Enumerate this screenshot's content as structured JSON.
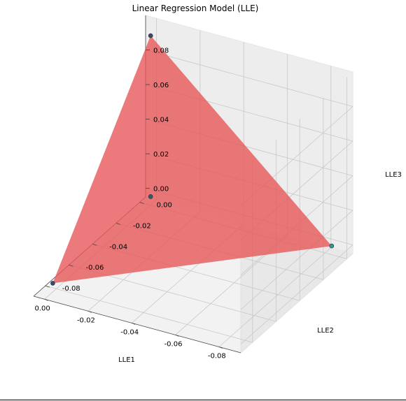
{
  "chart_data": {
    "type": "scatter",
    "projection": "3d",
    "title": "Linear Regression Model (LLE)",
    "xlabel": "LLE1",
    "ylabel": "LLE2",
    "zlabel": "LLE3",
    "xlim": [
      -0.09,
      0.005
    ],
    "ylim": [
      -0.09,
      0.005
    ],
    "zlim": [
      -0.005,
      0.1
    ],
    "xticks": [
      "-0.08",
      "-0.06",
      "-0.04",
      "-0.02",
      "0.00"
    ],
    "yticks": [
      "-0.08",
      "-0.06",
      "-0.04",
      "-0.02",
      "0.00"
    ],
    "zticks": [
      "0.00",
      "0.02",
      "0.04",
      "0.06",
      "0.08"
    ],
    "grid": true,
    "points": [
      {
        "x": -0.083,
        "y": 0.0,
        "z": 0.0,
        "color": "#2a9d8f"
      },
      {
        "x": 0.0,
        "y": -0.083,
        "z": 0.0,
        "color": "#3b4a6b"
      },
      {
        "x": 0.0,
        "y": 0.0,
        "z": 0.0,
        "color": "#2f5d6b"
      },
      {
        "x": 0.0,
        "y": 0.0,
        "z": 0.093,
        "color": "#3b4a6b"
      }
    ],
    "surface": {
      "type": "regression-plane",
      "color": "#e8585a",
      "vertices": [
        {
          "x": -0.083,
          "y": 0.0,
          "z": 0.0
        },
        {
          "x": 0.0,
          "y": -0.083,
          "z": 0.0
        },
        {
          "x": 0.0,
          "y": 0.0,
          "z": 0.0
        },
        {
          "x": 0.0,
          "y": 0.0,
          "z": 0.093
        }
      ]
    }
  }
}
